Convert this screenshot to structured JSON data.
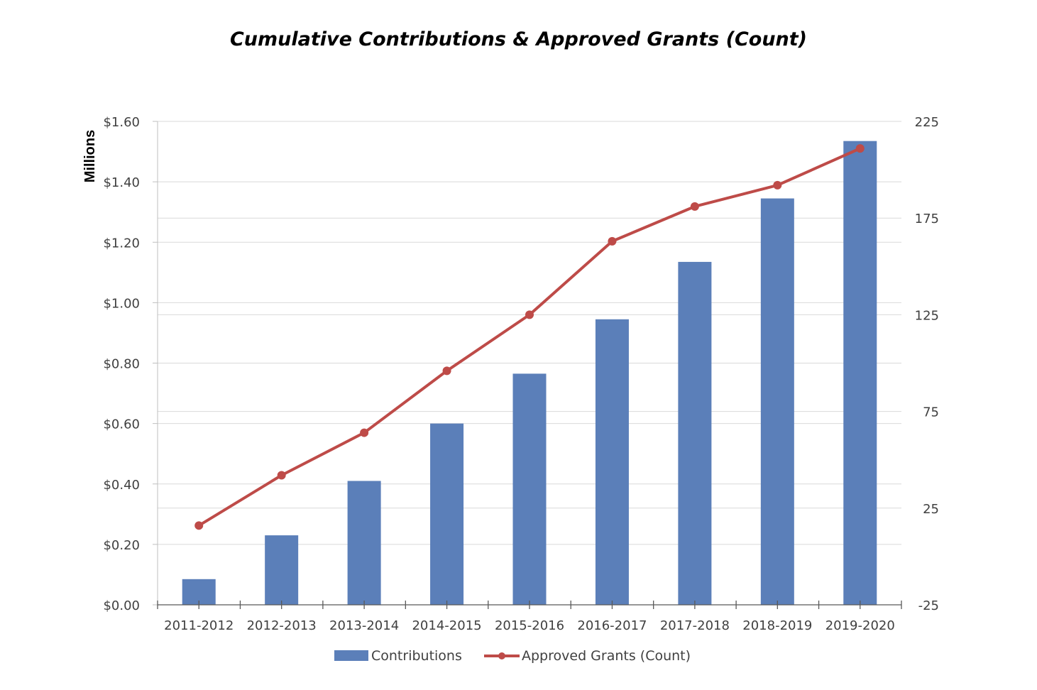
{
  "chart_data": {
    "type": "bar",
    "title": "Cumulative Contributions & Approved Grants (Count)",
    "categories": [
      "2011-2012",
      "2012-2013",
      "2013-2014",
      "2014-2015",
      "2015-2016",
      "2016-2017",
      "2017-2018",
      "2018-2019",
      "2019-2020"
    ],
    "series": [
      {
        "name": "Contributions",
        "type": "bar",
        "axis": "left",
        "color": "#5B7FB9",
        "values": [
          0.085,
          0.23,
          0.41,
          0.6,
          0.765,
          0.945,
          1.135,
          1.345,
          1.535
        ]
      },
      {
        "name": "Approved Grants (Count)",
        "type": "line",
        "axis": "right",
        "color": "#BE4B48",
        "values": [
          16,
          42,
          64,
          96,
          125,
          163,
          181,
          192,
          211
        ]
      }
    ],
    "y_left": {
      "label": "Millions",
      "range": [
        0,
        1.6
      ],
      "tick_values": [
        0,
        0.2,
        0.4,
        0.6,
        0.8,
        1.0,
        1.2,
        1.4,
        1.6
      ],
      "tick_labels": [
        "$0.00",
        "$0.20",
        "$0.40",
        "$0.60",
        "$0.80",
        "$1.00",
        "$1.20",
        "$1.40",
        "$1.60"
      ]
    },
    "y_right": {
      "range": [
        -25,
        225
      ],
      "tick_values": [
        -25,
        25,
        75,
        125,
        175,
        225
      ],
      "tick_labels": [
        "-25",
        "25",
        "75",
        "125",
        "175",
        "225"
      ]
    },
    "grid": true,
    "legend": "bottom"
  }
}
